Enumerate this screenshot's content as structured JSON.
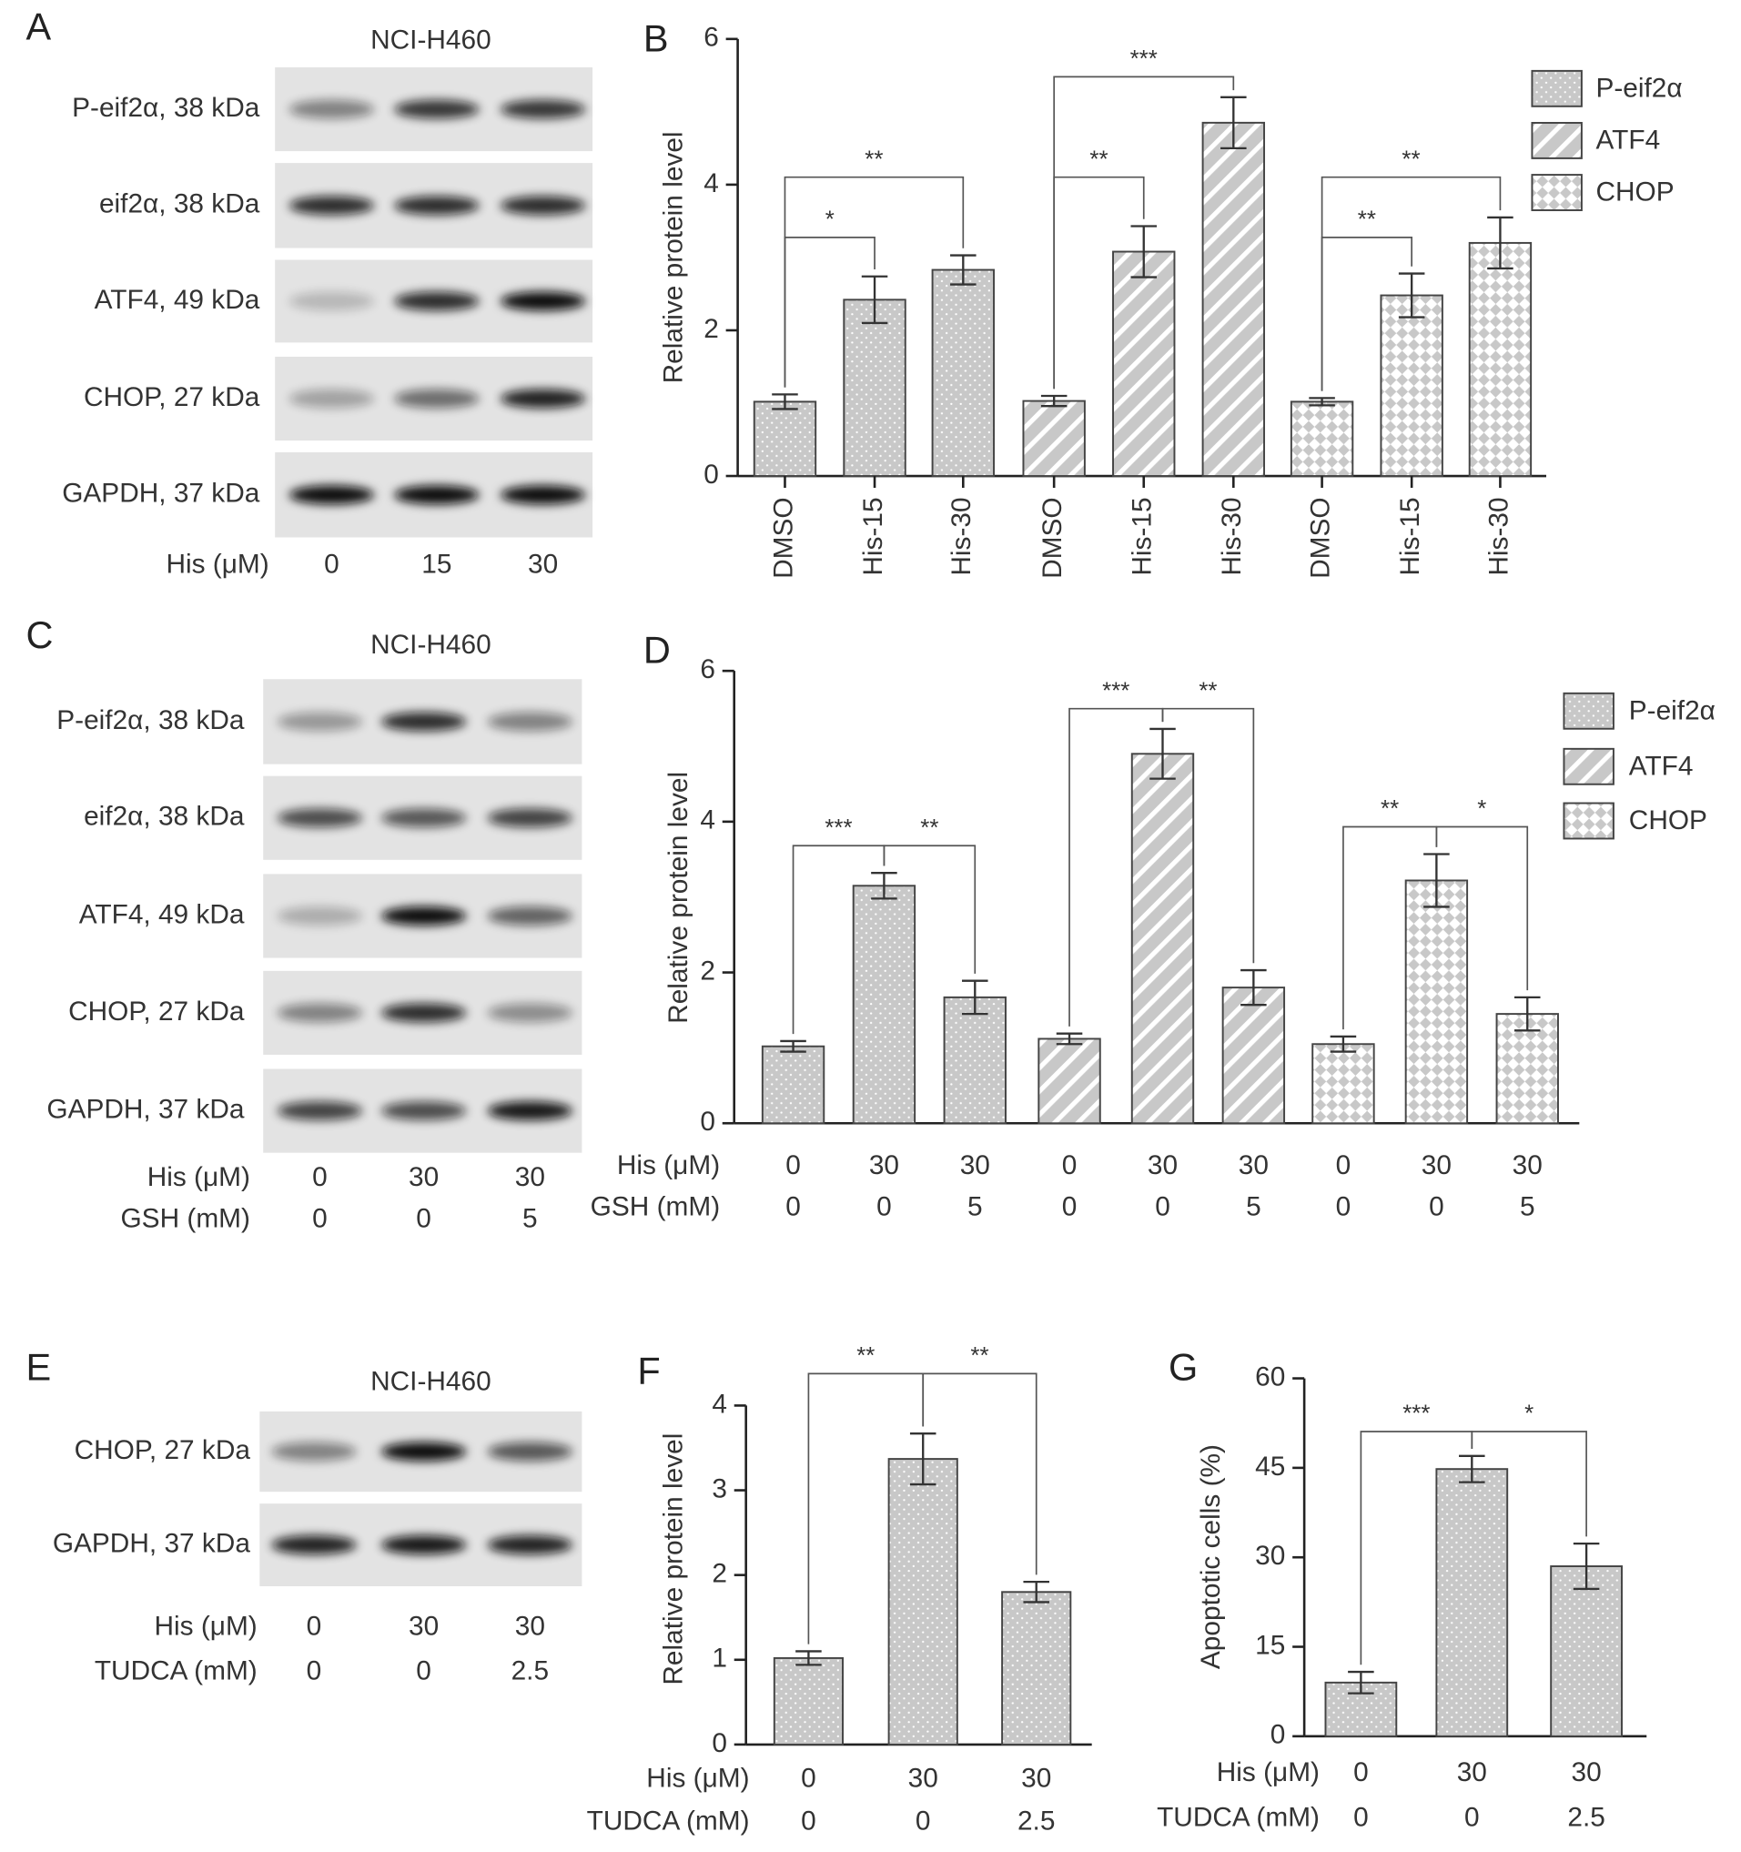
{
  "blots": [
    {
      "letter": "A",
      "title": "NCI-H460",
      "rows": [
        "P-eif2α, 38 kDa",
        "eif2α, 38 kDa",
        "ATF4, 49 kDa",
        "CHOP, 27 kDa",
        "GAPDH, 37 kDa"
      ],
      "conditions": [
        {
          "label": "His (μM)",
          "values": [
            "0",
            "15",
            "30"
          ]
        }
      ]
    },
    {
      "letter": "C",
      "title": "NCI-H460",
      "rows": [
        "P-eif2α, 38 kDa",
        "eif2α, 38 kDa",
        "ATF4, 49 kDa",
        "CHOP, 27 kDa",
        "GAPDH, 37 kDa"
      ],
      "conditions": [
        {
          "label": "His (μM)",
          "values": [
            "0",
            "30",
            "30"
          ]
        },
        {
          "label": "GSH (mM)",
          "values": [
            "0",
            "0",
            "5"
          ]
        }
      ]
    },
    {
      "letter": "E",
      "title": "NCI-H460",
      "rows": [
        "CHOP, 27 kDa",
        "GAPDH, 37 kDa"
      ],
      "conditions": [
        {
          "label": "His (μM)",
          "values": [
            "0",
            "30",
            "30"
          ]
        },
        {
          "label": "TUDCA (mM)",
          "values": [
            "0",
            "0",
            "2.5"
          ]
        }
      ]
    }
  ],
  "chart_data": [
    {
      "type": "bar",
      "letter": "B",
      "ylabel": "Relative protein level",
      "categories": [
        "DMSO",
        "His-15",
        "His-30",
        "DMSO",
        "His-15",
        "His-30",
        "DMSO",
        "His-15",
        "His-30"
      ],
      "series": [
        {
          "name": "P-eif2α",
          "color": "#c8c8c8",
          "pattern": "dots",
          "values": [
            1.02,
            2.42,
            2.83,
            null,
            null,
            null,
            null,
            null,
            null
          ],
          "errors": [
            0.1,
            0.32,
            0.2,
            null,
            null,
            null,
            null,
            null,
            null
          ]
        },
        {
          "name": "ATF4",
          "color": "#c8c8c8",
          "pattern": "stripes",
          "values": [
            null,
            null,
            null,
            1.03,
            3.08,
            4.85,
            null,
            null,
            null
          ],
          "errors": [
            null,
            null,
            null,
            0.07,
            0.35,
            0.35,
            null,
            null,
            null
          ]
        },
        {
          "name": "CHOP",
          "color": "#c8c8c8",
          "pattern": "diamonds",
          "values": [
            null,
            null,
            null,
            null,
            null,
            null,
            1.02,
            2.48,
            3.2
          ],
          "errors": [
            null,
            null,
            null,
            null,
            null,
            null,
            0.05,
            0.3,
            0.35
          ]
        }
      ],
      "ylim": [
        0,
        6
      ],
      "yticks": [
        0,
        2,
        4,
        6
      ],
      "legend": "top-right",
      "annotations": [
        "*",
        "**",
        "**",
        "***",
        "**",
        "**"
      ]
    },
    {
      "type": "bar",
      "letter": "D",
      "ylabel": "Relative protein level",
      "category_rows": [
        {
          "label": "His (μM)",
          "categories": [
            "0",
            "30",
            "30",
            "0",
            "30",
            "30",
            "0",
            "30",
            "30"
          ]
        },
        {
          "label": "GSH (mM)",
          "categories": [
            "0",
            "0",
            "5",
            "0",
            "0",
            "5",
            "0",
            "0",
            "5"
          ]
        }
      ],
      "series": [
        {
          "name": "P-eif2α",
          "color": "#c8c8c8",
          "pattern": "dots",
          "values": [
            1.02,
            3.15,
            1.67,
            null,
            null,
            null,
            null,
            null,
            null
          ],
          "errors": [
            0.07,
            0.17,
            0.22,
            null,
            null,
            null,
            null,
            null,
            null
          ]
        },
        {
          "name": "ATF4",
          "color": "#c8c8c8",
          "pattern": "stripes",
          "values": [
            null,
            null,
            null,
            1.12,
            4.9,
            1.8,
            null,
            null,
            null
          ],
          "errors": [
            null,
            null,
            null,
            0.07,
            0.33,
            0.23,
            null,
            null,
            null
          ]
        },
        {
          "name": "CHOP",
          "color": "#c8c8c8",
          "pattern": "diamonds",
          "values": [
            null,
            null,
            null,
            null,
            null,
            null,
            1.05,
            3.22,
            1.45
          ],
          "errors": [
            null,
            null,
            null,
            null,
            null,
            null,
            0.1,
            0.35,
            0.22
          ]
        }
      ],
      "ylim": [
        0,
        6
      ],
      "yticks": [
        0,
        2,
        4,
        6
      ],
      "legend": "top-right",
      "annotations": [
        "***",
        "**",
        "***",
        "**",
        "**",
        "*"
      ]
    },
    {
      "type": "bar",
      "letter": "F",
      "ylabel": "Relative protein level",
      "category_rows": [
        {
          "label": "His (μM)",
          "categories": [
            "0",
            "30",
            "30"
          ]
        },
        {
          "label": "TUDCA (mM)",
          "categories": [
            "0",
            "0",
            "2.5"
          ]
        }
      ],
      "color": "#c8c8c8",
      "pattern": "dots",
      "values": [
        1.02,
        3.37,
        1.8
      ],
      "errors": [
        0.08,
        0.3,
        0.12
      ],
      "ylim": [
        0,
        4
      ],
      "yticks": [
        0,
        1,
        2,
        3,
        4
      ],
      "annotations": [
        "**",
        "**"
      ]
    },
    {
      "type": "bar",
      "letter": "G",
      "ylabel": "Apoptotic cells (%)",
      "category_rows": [
        {
          "label": "His (μM)",
          "categories": [
            "0",
            "30",
            "30"
          ]
        },
        {
          "label": "TUDCA (mM)",
          "categories": [
            "0",
            "0",
            "2.5"
          ]
        }
      ],
      "color": "#c8c8c8",
      "pattern": "dots",
      "values": [
        9,
        44.8,
        28.5
      ],
      "errors": [
        1.8,
        2.2,
        3.8
      ],
      "ylim": [
        0,
        60
      ],
      "yticks": [
        0,
        15,
        30,
        45,
        60
      ],
      "annotations": [
        "***",
        "*"
      ]
    }
  ]
}
